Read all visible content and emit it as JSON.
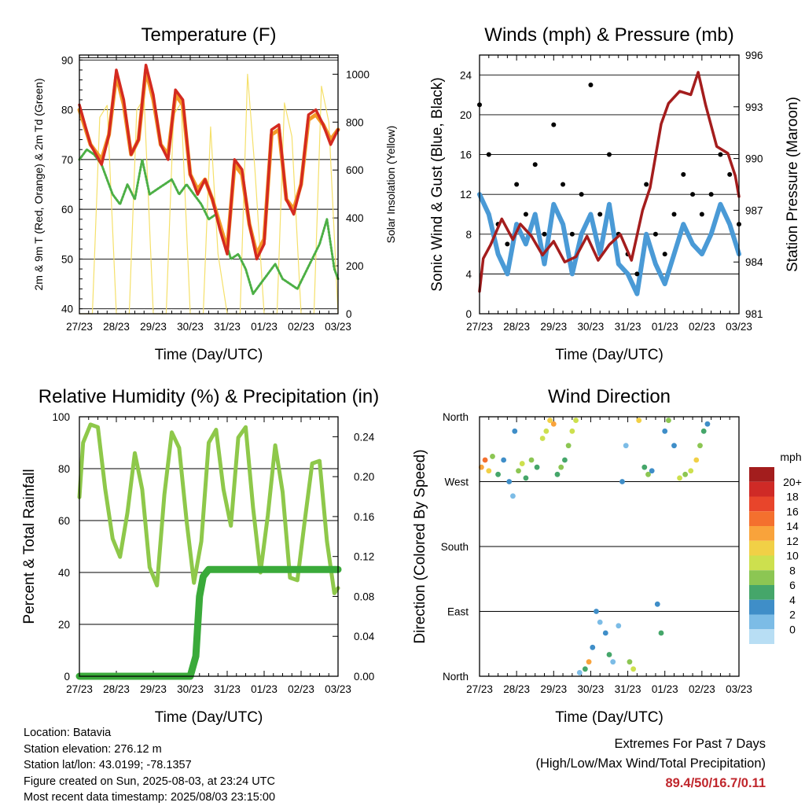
{
  "info": {
    "location": "Location: Batavia",
    "elevation": "Station elevation: 276.12 m",
    "latlon": "Station lat/lon: 43.0199; -78.1357",
    "created": "Figure created on Sun, 2025-08-03, at 23:24 UTC",
    "recent": "Most recent data timestamp: 2025/08/03 23:15:00"
  },
  "extremes": {
    "line1": "Extremes For Past 7 Days",
    "line2": "(High/Low/Max Wind/Total Precipitation)",
    "values": "89.4/50/16.7/0.11"
  },
  "colors": {
    "temp_red": "#d42a20",
    "temp_orange": "#f39a28",
    "dewpoint_green": "#4caf45",
    "solar_yellow": "#f5e06a",
    "wind_blue": "#4a9ad6",
    "gust_black": "#000000",
    "pressure_maroon": "#a41d1d",
    "rh_lightgreen": "#8ec84a",
    "precip_green": "#3aaa3a"
  },
  "chart_data": [
    {
      "type": "line",
      "title": "Temperature (F)",
      "xlabel": "Time (Day/UTC)",
      "ylabel": "2m & 9m T (Red, Orange) & 2m Td (Green)",
      "y2label": "Solar Insolation (Yellow)",
      "x_ticks": [
        "27/23",
        "28/23",
        "29/23",
        "30/23",
        "31/23",
        "01/23",
        "02/23",
        "03/23"
      ],
      "ylim": [
        39,
        91
      ],
      "y_ticks": [
        40,
        50,
        60,
        70,
        80,
        90
      ],
      "y2lim": [
        0,
        1080
      ],
      "y2_ticks": [
        0,
        200,
        400,
        600,
        800,
        1000
      ],
      "series": [
        {
          "name": "2m T",
          "color": "#d42a20",
          "x": [
            0,
            0.3,
            0.6,
            0.8,
            1.0,
            1.2,
            1.4,
            1.6,
            1.8,
            2.0,
            2.2,
            2.4,
            2.6,
            2.8,
            3.0,
            3.2,
            3.4,
            3.6,
            3.8,
            4.0,
            4.2,
            4.4,
            4.6,
            4.8,
            5.0,
            5.2,
            5.4,
            5.6,
            5.8,
            6.0,
            6.2,
            6.4,
            6.6,
            6.8,
            7.0
          ],
          "values": [
            81,
            73,
            69,
            75,
            88,
            82,
            71,
            74,
            89,
            83,
            73,
            70,
            84,
            82,
            67,
            63,
            66,
            62,
            56,
            51,
            70,
            68,
            57,
            50,
            53,
            76,
            77,
            62,
            59,
            65,
            79,
            80,
            77,
            73,
            76
          ]
        },
        {
          "name": "9m T",
          "color": "#f39a28",
          "x": [
            0,
            0.3,
            0.6,
            0.8,
            1.0,
            1.2,
            1.4,
            1.6,
            1.8,
            2.0,
            2.2,
            2.4,
            2.6,
            2.8,
            3.0,
            3.2,
            3.4,
            3.6,
            3.8,
            4.0,
            4.2,
            4.4,
            4.6,
            4.8,
            5.0,
            5.2,
            5.4,
            5.6,
            5.8,
            6.0,
            6.2,
            6.4,
            6.6,
            6.8,
            7.0
          ],
          "values": [
            80,
            73,
            70,
            75,
            87,
            81,
            71,
            74,
            88,
            82,
            73,
            71,
            83,
            81,
            67,
            64,
            66,
            62,
            57,
            52,
            69,
            67,
            57,
            51,
            54,
            75,
            76,
            62,
            60,
            65,
            78,
            79,
            77,
            74,
            76
          ]
        },
        {
          "name": "2m Td",
          "color": "#4caf45",
          "x": [
            0,
            0.2,
            0.4,
            0.6,
            0.9,
            1.1,
            1.3,
            1.5,
            1.7,
            1.9,
            2.1,
            2.3,
            2.5,
            2.7,
            2.9,
            3.1,
            3.3,
            3.5,
            3.7,
            3.9,
            4.1,
            4.3,
            4.5,
            4.7,
            4.9,
            5.1,
            5.3,
            5.5,
            5.7,
            5.9,
            6.1,
            6.3,
            6.5,
            6.7,
            6.9,
            7.0
          ],
          "values": [
            70,
            72,
            71,
            69,
            63,
            61,
            65,
            62,
            70,
            63,
            64,
            65,
            66,
            63,
            65,
            63,
            61,
            58,
            59,
            55,
            50,
            51,
            48,
            43,
            45,
            47,
            49,
            46,
            45,
            44,
            47,
            50,
            53,
            58,
            48,
            46
          ]
        },
        {
          "name": "Solar",
          "color": "#f5e06a",
          "axis": "y2",
          "x": [
            0,
            0.15,
            0.35,
            0.55,
            0.75,
            1.0,
            1.15,
            1.35,
            1.55,
            1.75,
            2.0,
            2.15,
            2.35,
            2.55,
            2.75,
            3.0,
            3.15,
            3.35,
            3.55,
            3.75,
            4.0,
            4.15,
            4.35,
            4.55,
            4.75,
            5.0,
            5.15,
            5.35,
            5.55,
            5.75,
            6.0,
            6.15,
            6.35,
            6.55,
            6.75,
            7.0
          ],
          "values": [
            0,
            0,
            0,
            820,
            870,
            0,
            0,
            0,
            850,
            900,
            0,
            0,
            0,
            830,
            880,
            0,
            0,
            0,
            780,
            250,
            0,
            0,
            0,
            1000,
            600,
            0,
            0,
            0,
            880,
            740,
            0,
            0,
            0,
            950,
            800,
            0
          ]
        }
      ]
    },
    {
      "type": "line",
      "title": "Winds (mph) & Pressure (mb)",
      "xlabel": "Time (Day/UTC)",
      "ylabel": "Sonic Wind & Gust (Blue, Black)",
      "y2label": "Station Pressure (Maroon)",
      "x_ticks": [
        "27/23",
        "28/23",
        "29/23",
        "30/23",
        "31/23",
        "01/23",
        "02/23",
        "03/23"
      ],
      "ylim": [
        0,
        26
      ],
      "y_ticks": [
        0,
        4,
        8,
        12,
        16,
        20,
        24
      ],
      "y2lim": [
        981,
        996
      ],
      "y2_ticks": [
        981,
        984,
        987,
        990,
        993,
        996
      ],
      "series": [
        {
          "name": "Wind",
          "color": "#4a9ad6",
          "x": [
            0,
            0.25,
            0.5,
            0.75,
            1.0,
            1.25,
            1.5,
            1.75,
            2.0,
            2.25,
            2.5,
            2.75,
            3.0,
            3.25,
            3.5,
            3.75,
            4.0,
            4.25,
            4.5,
            4.75,
            5.0,
            5.25,
            5.5,
            5.75,
            6.0,
            6.25,
            6.5,
            6.75,
            7.0
          ],
          "values": [
            12,
            10,
            6,
            4,
            9,
            7,
            10,
            5,
            11,
            9,
            4,
            8,
            10,
            6,
            11,
            5,
            4,
            2,
            8,
            5,
            3,
            6,
            9,
            7,
            6,
            8,
            11,
            9,
            6
          ]
        },
        {
          "name": "Gust",
          "color": "#000000",
          "x": [
            0,
            0.25,
            0.5,
            0.75,
            1.0,
            1.25,
            1.5,
            1.75,
            2.0,
            2.25,
            2.5,
            2.75,
            3.0,
            3.25,
            3.5,
            3.75,
            4.0,
            4.25,
            4.5,
            4.75,
            5.0,
            5.25,
            5.5,
            5.75,
            6.0,
            6.25,
            6.5,
            6.75,
            7.0
          ],
          "values": [
            21,
            16,
            9,
            7,
            13,
            10,
            15,
            8,
            19,
            13,
            8,
            12,
            23,
            10,
            16,
            8,
            6,
            4,
            13,
            8,
            6,
            10,
            14,
            12,
            10,
            12,
            16,
            14,
            9
          ]
        },
        {
          "name": "Pressure",
          "color": "#a41d1d",
          "axis": "y2",
          "x": [
            0,
            0.1,
            0.3,
            0.6,
            0.9,
            1.1,
            1.4,
            1.7,
            2.0,
            2.3,
            2.6,
            2.9,
            3.2,
            3.5,
            3.8,
            4.1,
            4.4,
            4.6,
            4.9,
            5.1,
            5.4,
            5.7,
            5.9,
            6.1,
            6.4,
            6.7,
            6.9,
            7.0
          ],
          "values": [
            982.3,
            984.2,
            985.0,
            986.5,
            985.3,
            986.2,
            985.5,
            984.4,
            985.2,
            984.0,
            984.3,
            985.5,
            984.1,
            985.0,
            985.6,
            984.1,
            987.0,
            988.3,
            992.0,
            993.2,
            993.9,
            993.7,
            995.0,
            993.1,
            990.7,
            990.3,
            989.0,
            987.8
          ]
        }
      ]
    },
    {
      "type": "line",
      "title": "Relative Humidity (%) & Precipitation (in)",
      "xlabel": "Time (Day/UTC)",
      "ylabel": "Percent & Total Rainfall",
      "x_ticks": [
        "27/23",
        "28/23",
        "29/23",
        "30/23",
        "31/23",
        "01/23",
        "02/23",
        "03/23"
      ],
      "ylim": [
        0,
        100
      ],
      "y_ticks": [
        0,
        20,
        40,
        60,
        80,
        100
      ],
      "y2lim": [
        0,
        0.26
      ],
      "y2_ticks": [
        "0.00",
        "0.04",
        "0.08",
        "0.12",
        "0.16",
        "0.20",
        "0.24"
      ],
      "series": [
        {
          "name": "RH",
          "color": "#8ec84a",
          "x": [
            0,
            0.1,
            0.3,
            0.5,
            0.7,
            0.9,
            1.1,
            1.3,
            1.5,
            1.7,
            1.9,
            2.1,
            2.3,
            2.5,
            2.7,
            2.9,
            3.1,
            3.3,
            3.5,
            3.7,
            3.9,
            4.1,
            4.3,
            4.5,
            4.7,
            4.9,
            5.1,
            5.3,
            5.5,
            5.7,
            5.9,
            6.1,
            6.3,
            6.5,
            6.7,
            6.9,
            7.0
          ],
          "values": [
            69,
            90,
            97,
            96,
            72,
            53,
            46,
            63,
            86,
            72,
            42,
            35,
            70,
            94,
            88,
            60,
            36,
            52,
            90,
            95,
            72,
            58,
            92,
            96,
            65,
            40,
            62,
            89,
            71,
            38,
            37,
            60,
            82,
            83,
            52,
            32,
            34
          ]
        },
        {
          "name": "Precip",
          "color": "#3aaa3a",
          "axis": "y2",
          "x": [
            0,
            3.0,
            3.15,
            3.25,
            3.35,
            3.5,
            5.0,
            7.0
          ],
          "values": [
            0,
            0,
            0.02,
            0.08,
            0.1,
            0.107,
            0.107,
            0.107
          ]
        }
      ]
    },
    {
      "type": "scatter",
      "title": "Wind Direction",
      "xlabel": "Time (Day/UTC)",
      "ylabel": "Direction (Colored By Speed)",
      "x_ticks": [
        "27/23",
        "28/23",
        "29/23",
        "30/23",
        "31/23",
        "01/23",
        "02/23",
        "03/23"
      ],
      "y_ticks": [
        "North",
        "East",
        "South",
        "West",
        "North"
      ],
      "legend": {
        "title": "mph",
        "labels": [
          "20+",
          "18",
          "16",
          "14",
          "12",
          "10",
          "8",
          "6",
          "4",
          "2",
          "0"
        ],
        "colors": [
          "#a31d1d",
          "#cf2a26",
          "#e8452b",
          "#f4702e",
          "#f9a33b",
          "#f1d046",
          "#cde04e",
          "#8cc653",
          "#45a66a",
          "#3f8ec8",
          "#7cbce6",
          "#b8def4"
        ]
      },
      "points": [
        {
          "x": 0.05,
          "dir": 290,
          "spd": 14
        },
        {
          "x": 0.15,
          "dir": 300,
          "spd": 16
        },
        {
          "x": 0.25,
          "dir": 285,
          "spd": 12
        },
        {
          "x": 0.35,
          "dir": 305,
          "spd": 8
        },
        {
          "x": 0.5,
          "dir": 280,
          "spd": 6
        },
        {
          "x": 0.65,
          "dir": 300,
          "spd": 5
        },
        {
          "x": 0.8,
          "dir": 270,
          "spd": 4
        },
        {
          "x": 0.9,
          "dir": 250,
          "spd": 3
        },
        {
          "x": 0.95,
          "dir": 340,
          "spd": 4
        },
        {
          "x": 1.05,
          "dir": 285,
          "spd": 8
        },
        {
          "x": 1.15,
          "dir": 295,
          "spd": 10
        },
        {
          "x": 1.25,
          "dir": 275,
          "spd": 7
        },
        {
          "x": 1.4,
          "dir": 300,
          "spd": 9
        },
        {
          "x": 1.55,
          "dir": 290,
          "spd": 6
        },
        {
          "x": 1.7,
          "dir": 330,
          "spd": 11
        },
        {
          "x": 1.8,
          "dir": 340,
          "spd": 10
        },
        {
          "x": 1.9,
          "dir": 355,
          "spd": 12
        },
        {
          "x": 2.0,
          "dir": 350,
          "spd": 14
        },
        {
          "x": 2.1,
          "dir": 280,
          "spd": 6
        },
        {
          "x": 2.2,
          "dir": 290,
          "spd": 8
        },
        {
          "x": 2.3,
          "dir": 300,
          "spd": 7
        },
        {
          "x": 2.4,
          "dir": 320,
          "spd": 9
        },
        {
          "x": 2.5,
          "dir": 340,
          "spd": 11
        },
        {
          "x": 2.6,
          "dir": 355,
          "spd": 10
        },
        {
          "x": 2.7,
          "dir": 5,
          "spd": 3
        },
        {
          "x": 2.85,
          "dir": 10,
          "spd": 6
        },
        {
          "x": 2.95,
          "dir": 20,
          "spd": 14
        },
        {
          "x": 3.05,
          "dir": 40,
          "spd": 5
        },
        {
          "x": 3.15,
          "dir": 90,
          "spd": 4
        },
        {
          "x": 3.25,
          "dir": 75,
          "spd": 3
        },
        {
          "x": 3.4,
          "dir": 60,
          "spd": 4
        },
        {
          "x": 3.5,
          "dir": 30,
          "spd": 6
        },
        {
          "x": 3.6,
          "dir": 20,
          "spd": 2
        },
        {
          "x": 3.75,
          "dir": 70,
          "spd": 3
        },
        {
          "x": 3.85,
          "dir": 270,
          "spd": 4
        },
        {
          "x": 3.95,
          "dir": 320,
          "spd": 3
        },
        {
          "x": 4.05,
          "dir": 20,
          "spd": 9
        },
        {
          "x": 4.15,
          "dir": 10,
          "spd": 11
        },
        {
          "x": 4.3,
          "dir": 355,
          "spd": 12
        },
        {
          "x": 4.45,
          "dir": 290,
          "spd": 6
        },
        {
          "x": 4.55,
          "dir": 280,
          "spd": 8
        },
        {
          "x": 4.65,
          "dir": 285,
          "spd": 5
        },
        {
          "x": 4.8,
          "dir": 100,
          "spd": 4
        },
        {
          "x": 4.9,
          "dir": 60,
          "spd": 6
        },
        {
          "x": 5.0,
          "dir": 340,
          "spd": 5
        },
        {
          "x": 5.1,
          "dir": 355,
          "spd": 8
        },
        {
          "x": 5.25,
          "dir": 320,
          "spd": 4
        },
        {
          "x": 5.4,
          "dir": 275,
          "spd": 10
        },
        {
          "x": 5.55,
          "dir": 280,
          "spd": 9
        },
        {
          "x": 5.7,
          "dir": 285,
          "spd": 11
        },
        {
          "x": 5.85,
          "dir": 300,
          "spd": 12
        },
        {
          "x": 5.95,
          "dir": 320,
          "spd": 8
        },
        {
          "x": 6.05,
          "dir": 340,
          "spd": 6
        },
        {
          "x": 6.15,
          "dir": 350,
          "spd": 4
        }
      ]
    }
  ]
}
